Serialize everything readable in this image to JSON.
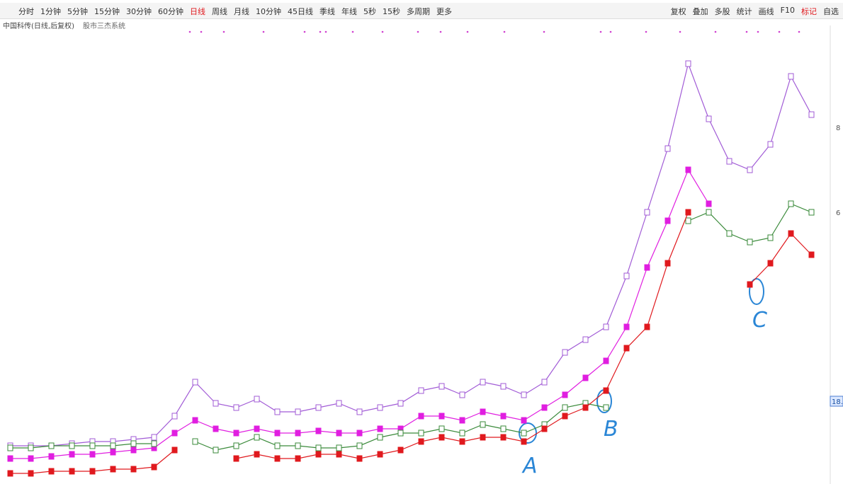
{
  "toolbar": {
    "left": [
      "分时",
      "1分钟",
      "5分钟",
      "15分钟",
      "30分钟",
      "60分钟",
      "日线",
      "周线",
      "月线",
      "10分钟",
      "45日线",
      "季线",
      "年线",
      "5秒",
      "15秒",
      "多周期",
      "更多"
    ],
    "right": [
      "复权",
      "叠加",
      "多股",
      "统计",
      "画线",
      "F10",
      "标记",
      "自选"
    ]
  },
  "header": {
    "title": "中国科传(日线,后复权)",
    "indicator": "股市三杰系统"
  },
  "axis_labels": [
    "8",
    "6",
    "18."
  ],
  "annotations": [
    "A",
    "B",
    "C"
  ],
  "chart_data": {
    "type": "candlestick",
    "ylim": [
      -4,
      104
    ],
    "categories": [
      null,
      null,
      null,
      null,
      null,
      null,
      null,
      null,
      null,
      null,
      null,
      null,
      null,
      null,
      null,
      null,
      null,
      null,
      null,
      null,
      null,
      null,
      null,
      null,
      null,
      null,
      null,
      null,
      null,
      null,
      null,
      null,
      null,
      null,
      null,
      null,
      null,
      null,
      null,
      null
    ],
    "series": [
      {
        "color": "#a15bd6",
        "values": [
          5,
          5,
          5,
          5.5,
          6,
          6,
          6.5,
          7,
          12,
          20,
          15,
          14,
          16,
          13,
          13,
          14,
          15,
          13,
          14,
          15,
          18,
          19,
          17,
          20,
          19,
          17,
          20,
          27,
          30,
          33,
          45,
          60,
          75,
          95,
          82,
          72,
          70,
          76,
          92,
          83
        ]
      },
      {
        "color": "#e01ee0",
        "values": [
          2,
          2,
          2.5,
          3,
          3,
          3.5,
          4,
          4.5,
          8,
          11,
          9,
          8,
          9,
          8,
          8,
          8.5,
          8,
          8,
          9,
          9,
          12,
          12,
          11,
          13,
          12,
          11,
          14,
          17,
          21,
          25,
          33,
          47,
          58,
          70,
          62,
          null,
          null,
          null,
          null,
          null
        ]
      },
      {
        "color": "#3a8a3a",
        "values": [
          4.5,
          4.5,
          5,
          5,
          5,
          5,
          5.5,
          5.5,
          null,
          6,
          4,
          5,
          7,
          5,
          5,
          4.5,
          4.5,
          5,
          7,
          8,
          8,
          9,
          8,
          10,
          9,
          8,
          10,
          14,
          15,
          14,
          null,
          null,
          null,
          58,
          60,
          55,
          53,
          54,
          62,
          60
        ]
      },
      {
        "color": "#e0191e",
        "values": [
          -1.5,
          -1.5,
          -1,
          -1,
          -1,
          -0.5,
          -0.5,
          0,
          4,
          null,
          null,
          2,
          3,
          2,
          2,
          3,
          3,
          2,
          3,
          4,
          6,
          7,
          6,
          7,
          7,
          6,
          9,
          12,
          14,
          18,
          28,
          33,
          48,
          60,
          null,
          null,
          43,
          48,
          55,
          50
        ]
      }
    ]
  }
}
